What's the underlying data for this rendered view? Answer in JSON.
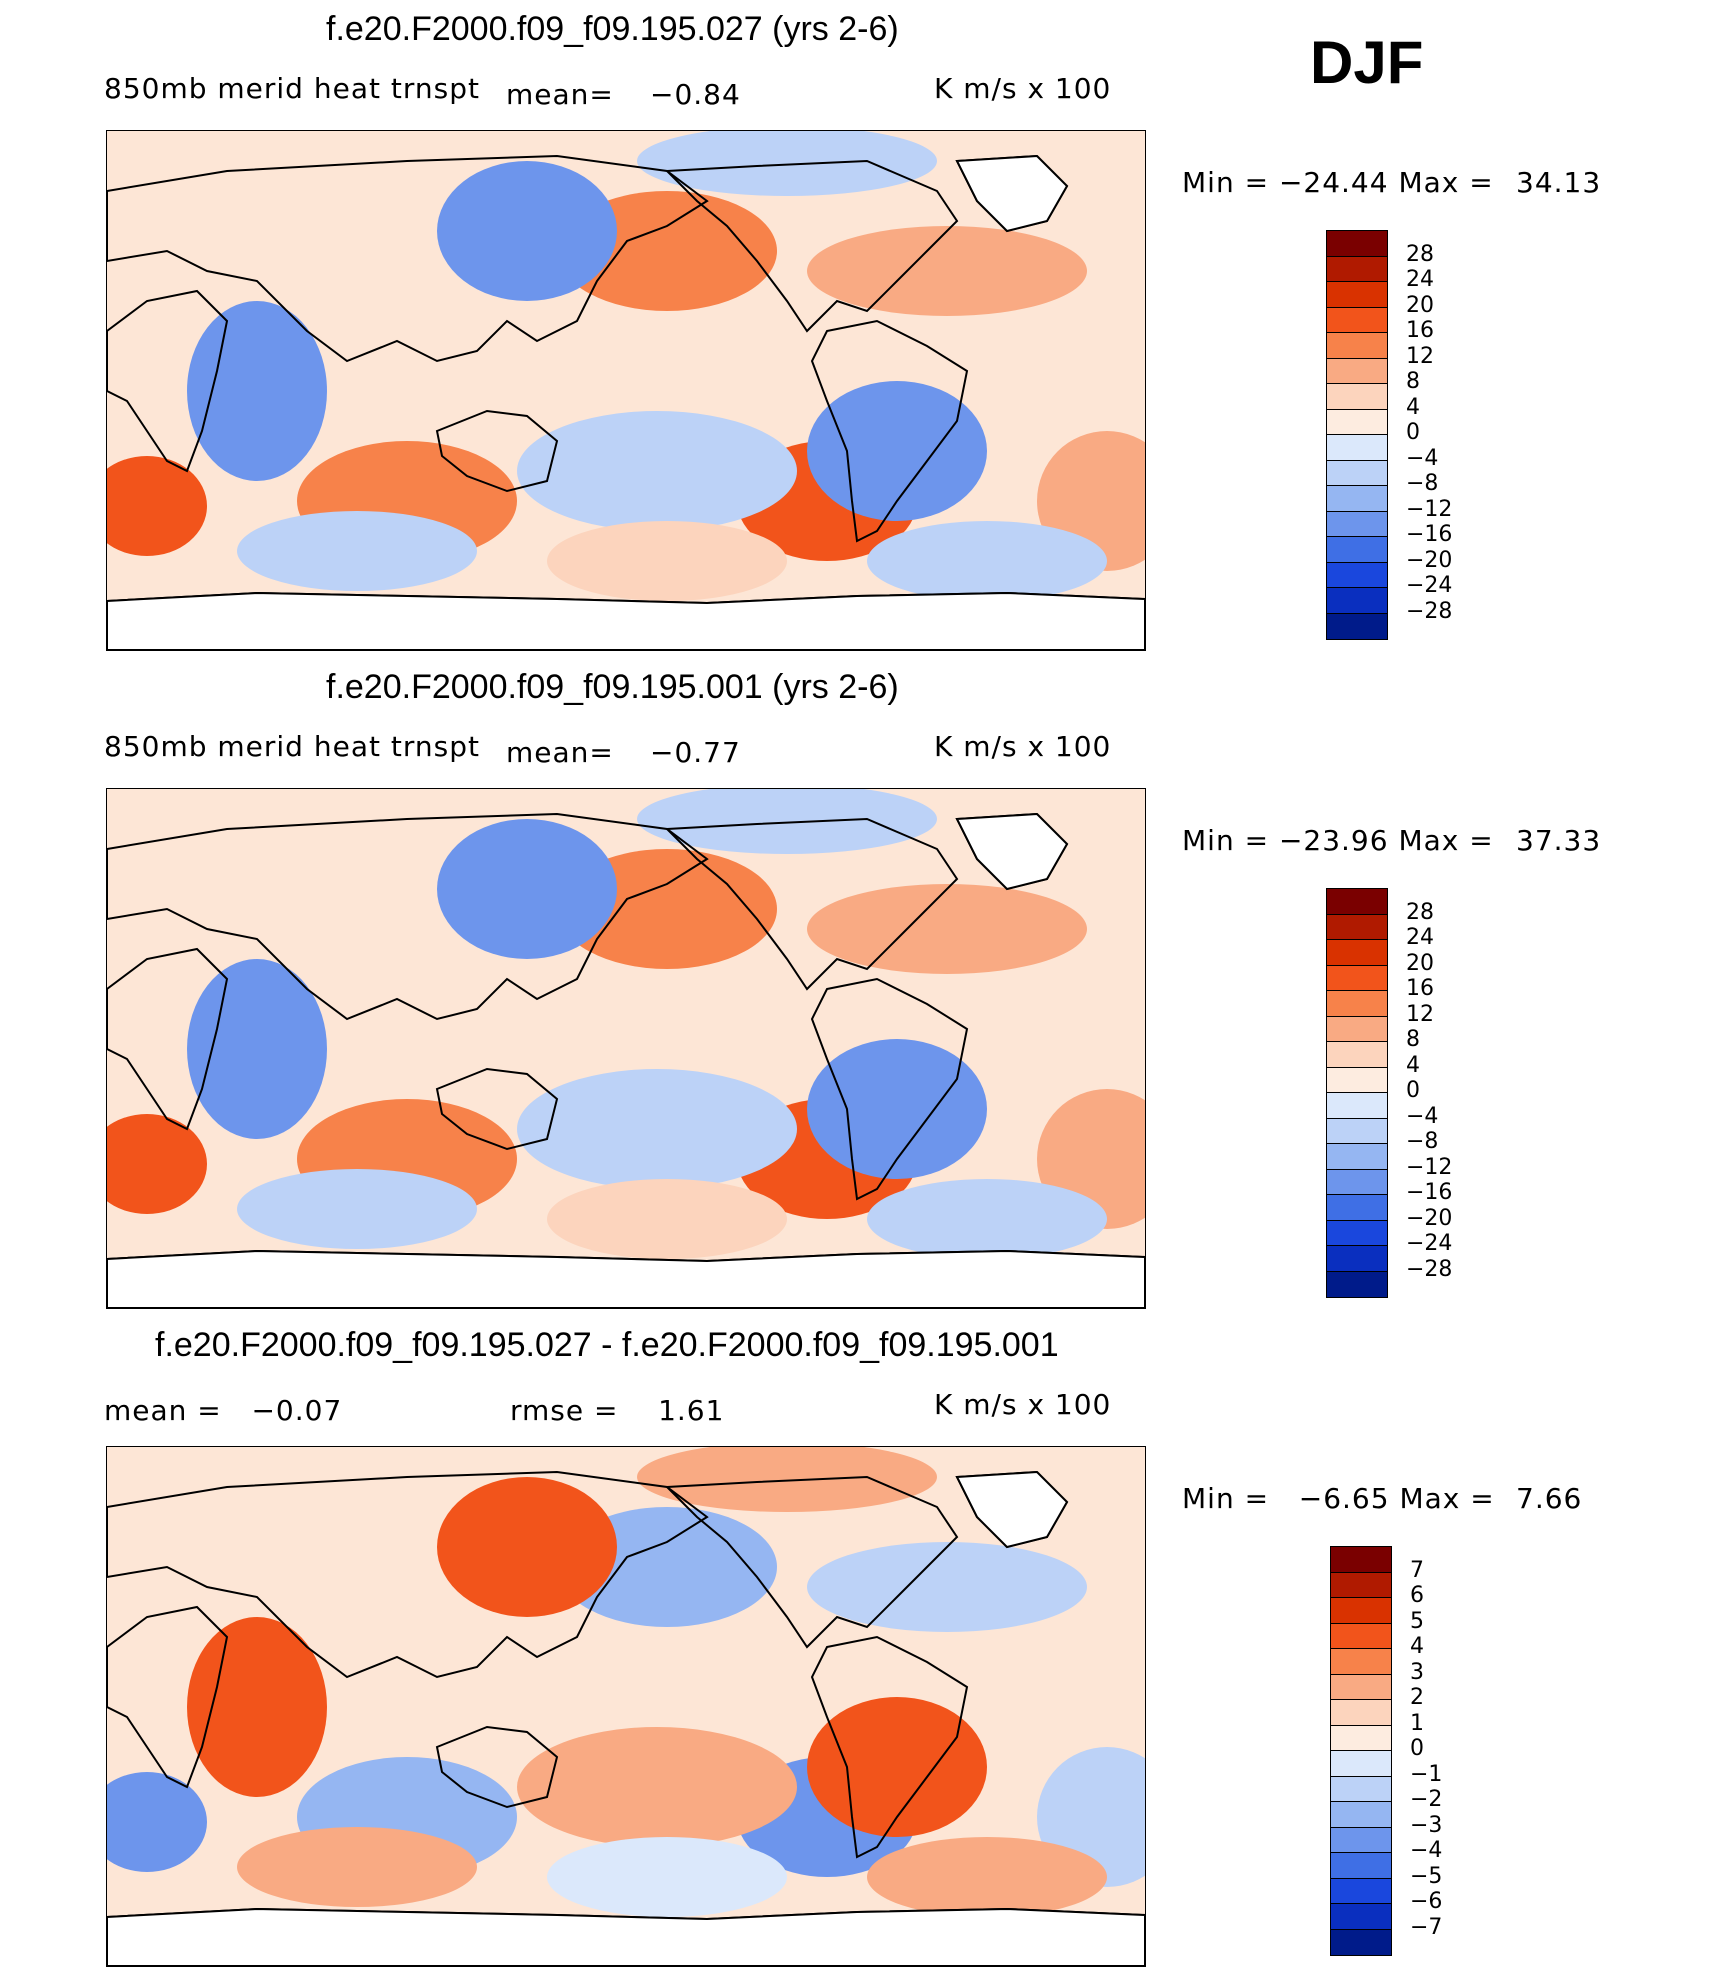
{
  "season": "DJF",
  "panels": [
    {
      "title": "f.e20.F2000.f09_f09.195.027 (yrs 2-6)",
      "left_label": "850mb merid heat trnspt",
      "mean_label": "mean=",
      "mean_value": "−0.84",
      "units": "K m/s x 100",
      "minmax_label": "Min = −24.44 Max =",
      "max_value": "34.13",
      "levels": [
        "28",
        "24",
        "20",
        "16",
        "12",
        "8",
        "4",
        "0",
        "−4",
        "−8",
        "−12",
        "−16",
        "−20",
        "−24",
        "−28"
      ]
    },
    {
      "title": "f.e20.F2000.f09_f09.195.001 (yrs 2-6)",
      "left_label": "850mb merid heat trnspt",
      "mean_label": "mean=",
      "mean_value": "−0.77",
      "units": "K m/s x 100",
      "minmax_label": "Min = −23.96 Max =",
      "max_value": "37.33",
      "levels": [
        "28",
        "24",
        "20",
        "16",
        "12",
        "8",
        "4",
        "0",
        "−4",
        "−8",
        "−12",
        "−16",
        "−20",
        "−24",
        "−28"
      ]
    },
    {
      "title": "f.e20.F2000.f09_f09.195.027 - f.e20.F2000.f09_f09.195.001",
      "mean_text": "mean =   −0.07",
      "rmse_text": "rmse =    1.61",
      "units": "K m/s x 100",
      "minmax_label": "Min =   −6.65 Max =",
      "max_value": "7.66",
      "levels": [
        "7",
        "6",
        "5",
        "4",
        "3",
        "2",
        "1",
        "0",
        "−1",
        "−2",
        "−3",
        "−4",
        "−5",
        "−6",
        "−7"
      ]
    }
  ],
  "colorbar_colors": [
    "#7a0000",
    "#b01a00",
    "#d93200",
    "#f2541b",
    "#f7824a",
    "#f9aa83",
    "#fcd4bd",
    "#fdece0",
    "#dbe8fb",
    "#bcd2f7",
    "#95b6f2",
    "#6d95ec",
    "#3f6fe5",
    "#1a47dd",
    "#0a2fbf",
    "#001b8a"
  ],
  "map": {
    "ocean_color": "#fde6d6",
    "land_color": "#ffffff",
    "coast_color": "#000000"
  }
}
